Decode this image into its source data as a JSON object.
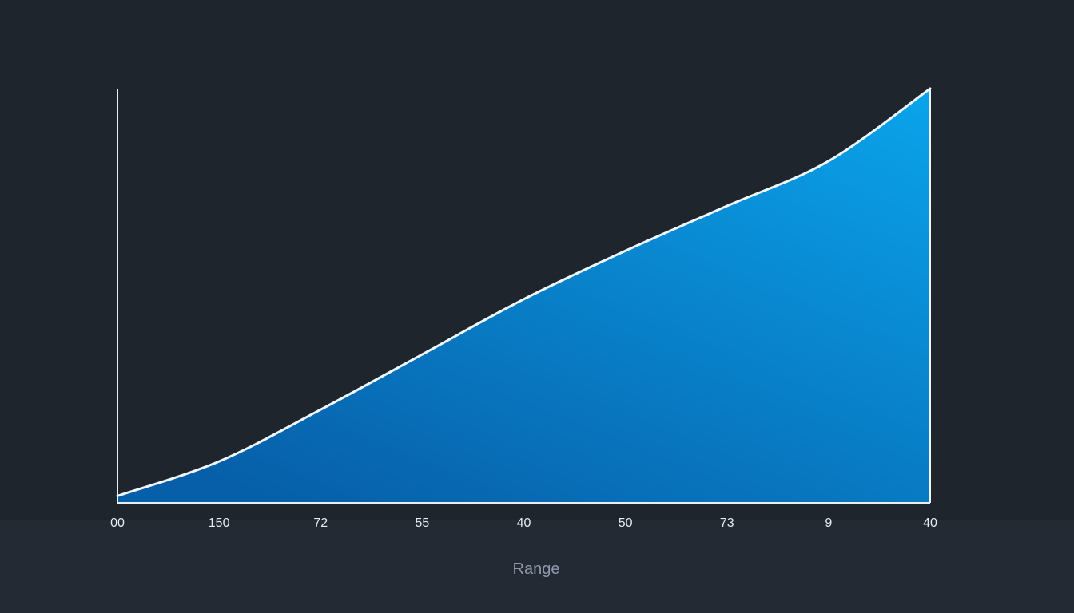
{
  "chart_data": {
    "type": "area",
    "title": "",
    "xlabel": "Range",
    "ylabel": "",
    "grid": false,
    "legend": "none",
    "categories": [
      "00",
      "150",
      "72",
      "55",
      "40",
      "50",
      "73",
      "9",
      "40"
    ],
    "series": [
      {
        "values": [
          2,
          12,
          27,
          43,
          59,
          73,
          86,
          99,
          120
        ],
        "color": "#0a9bdf"
      }
    ],
    "ylim": [
      0,
      120
    ],
    "colors": {
      "background": "#1f252d",
      "bottom_band": "#232a34",
      "axis": "#e8eef5",
      "line": "#f1f6ff",
      "fill_top": "#0aa4eb",
      "fill_bottom": "#075fa9"
    }
  }
}
